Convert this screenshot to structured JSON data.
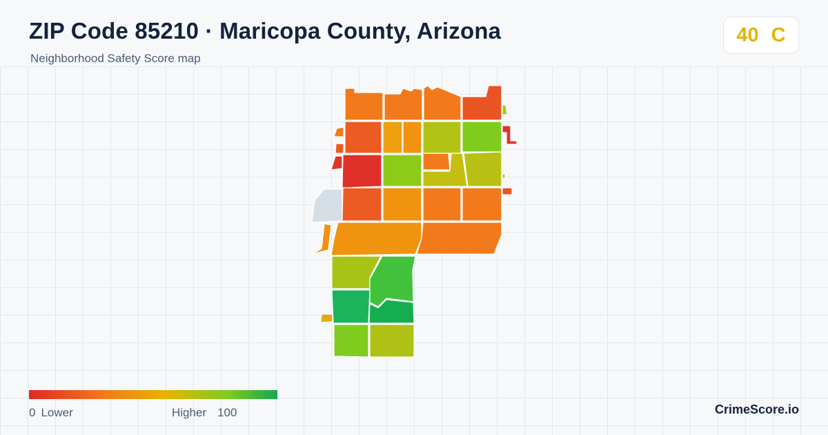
{
  "header": {
    "title": "ZIP Code 85210 · Maricopa County, Arizona",
    "subtitle": "Neighborhood Safety Score map"
  },
  "score": {
    "value": "40",
    "grade": "C",
    "color": "#e6b400"
  },
  "legend": {
    "min_value": "0",
    "min_label": "Lower",
    "max_label": "Higher",
    "max_value": "100",
    "gradient_colors": [
      "#e02828",
      "#f27a1a",
      "#e6b400",
      "#7fcc1e",
      "#15a650"
    ]
  },
  "brand": "CrimeScore.io",
  "colors": {
    "background": "#f6f8fa",
    "gridline": "#e4e8ec",
    "no_data": "#d5dde5",
    "title": "#14233b"
  }
}
